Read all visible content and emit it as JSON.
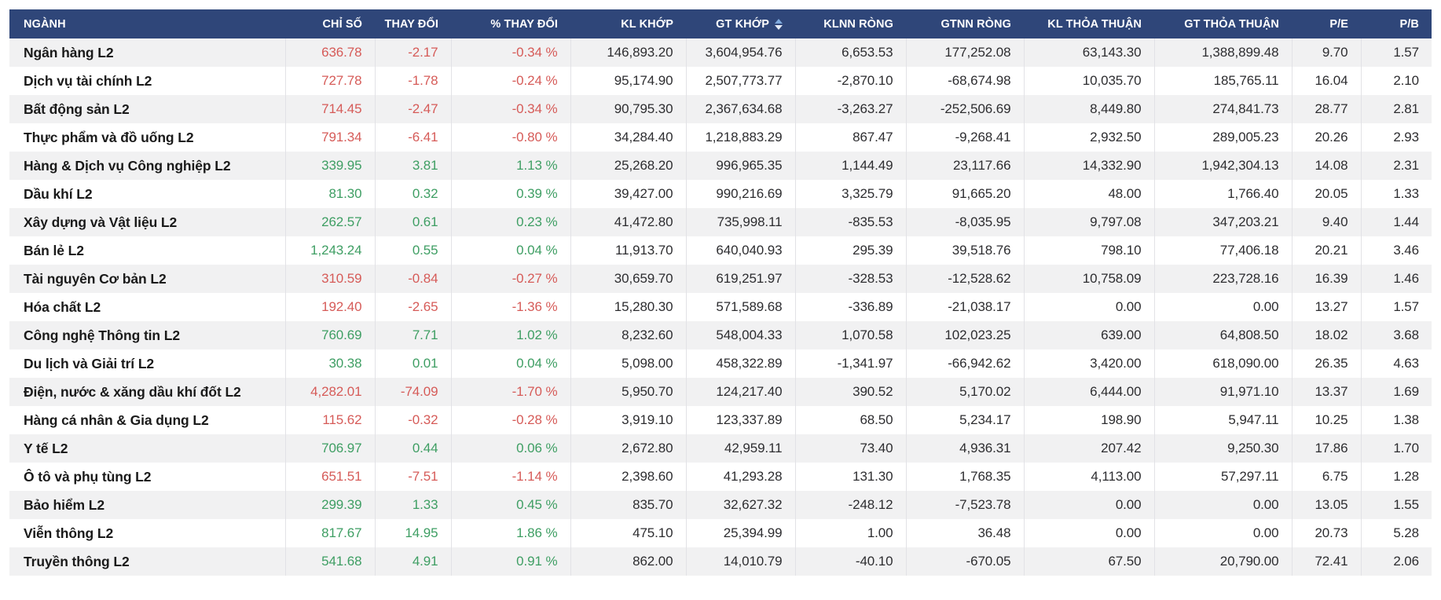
{
  "colors": {
    "header_bg": "#2f4679",
    "header_text": "#ffffff",
    "row_alt": "#f1f1f2",
    "up": "#3e9e63",
    "down": "#d65b58",
    "neutral": "#2d2d30",
    "sort_active": "#7ea9dd"
  },
  "table": {
    "columns": [
      {
        "key": "nganh",
        "label": "NGÀNH",
        "align": "left"
      },
      {
        "key": "chi_so",
        "label": "CHỈ SỐ",
        "align": "right",
        "trend": true
      },
      {
        "key": "thay_doi",
        "label": "THAY ĐỔI",
        "align": "right",
        "trend": true
      },
      {
        "key": "pct",
        "label": "% THAY ĐỔI",
        "align": "right",
        "trend": true
      },
      {
        "key": "kl_khop",
        "label": "KL KHỚP",
        "align": "right"
      },
      {
        "key": "gt_khop",
        "label": "GT KHỚP",
        "align": "right",
        "sorted": true
      },
      {
        "key": "klnn_rong",
        "label": "KLNN RÒNG",
        "align": "right"
      },
      {
        "key": "gtnn_rong",
        "label": "GTNN RÒNG",
        "align": "right"
      },
      {
        "key": "kl_tt",
        "label": "KL THỎA THUẬN",
        "align": "right"
      },
      {
        "key": "gt_tt",
        "label": "GT THỎA THUẬN",
        "align": "right"
      },
      {
        "key": "pe",
        "label": "P/E",
        "align": "right"
      },
      {
        "key": "pb",
        "label": "P/B",
        "align": "right"
      }
    ],
    "rows": [
      {
        "nganh": "Ngân hàng L2",
        "trend": "down",
        "chi_so": "636.78",
        "thay_doi": "-2.17",
        "pct": "-0.34 %",
        "kl_khop": "146,893.20",
        "gt_khop": "3,604,954.76",
        "klnn_rong": "6,653.53",
        "gtnn_rong": "177,252.08",
        "kl_tt": "63,143.30",
        "gt_tt": "1,388,899.48",
        "pe": "9.70",
        "pb": "1.57"
      },
      {
        "nganh": "Dịch vụ tài chính L2",
        "trend": "down",
        "chi_so": "727.78",
        "thay_doi": "-1.78",
        "pct": "-0.24 %",
        "kl_khop": "95,174.90",
        "gt_khop": "2,507,773.77",
        "klnn_rong": "-2,870.10",
        "gtnn_rong": "-68,674.98",
        "kl_tt": "10,035.70",
        "gt_tt": "185,765.11",
        "pe": "16.04",
        "pb": "2.10"
      },
      {
        "nganh": "Bất động sản L2",
        "trend": "down",
        "chi_so": "714.45",
        "thay_doi": "-2.47",
        "pct": "-0.34 %",
        "kl_khop": "90,795.30",
        "gt_khop": "2,367,634.68",
        "klnn_rong": "-3,263.27",
        "gtnn_rong": "-252,506.69",
        "kl_tt": "8,449.80",
        "gt_tt": "274,841.73",
        "pe": "28.77",
        "pb": "2.81"
      },
      {
        "nganh": "Thực phẩm và đồ uống L2",
        "trend": "down",
        "chi_so": "791.34",
        "thay_doi": "-6.41",
        "pct": "-0.80 %",
        "kl_khop": "34,284.40",
        "gt_khop": "1,218,883.29",
        "klnn_rong": "867.47",
        "gtnn_rong": "-9,268.41",
        "kl_tt": "2,932.50",
        "gt_tt": "289,005.23",
        "pe": "20.26",
        "pb": "2.93"
      },
      {
        "nganh": "Hàng & Dịch vụ Công nghiệp L2",
        "trend": "up",
        "chi_so": "339.95",
        "thay_doi": "3.81",
        "pct": "1.13 %",
        "kl_khop": "25,268.20",
        "gt_khop": "996,965.35",
        "klnn_rong": "1,144.49",
        "gtnn_rong": "23,117.66",
        "kl_tt": "14,332.90",
        "gt_tt": "1,942,304.13",
        "pe": "14.08",
        "pb": "2.31"
      },
      {
        "nganh": "Dầu khí L2",
        "trend": "up",
        "chi_so": "81.30",
        "thay_doi": "0.32",
        "pct": "0.39 %",
        "kl_khop": "39,427.00",
        "gt_khop": "990,216.69",
        "klnn_rong": "3,325.79",
        "gtnn_rong": "91,665.20",
        "kl_tt": "48.00",
        "gt_tt": "1,766.40",
        "pe": "20.05",
        "pb": "1.33"
      },
      {
        "nganh": "Xây dựng và Vật liệu L2",
        "trend": "up",
        "chi_so": "262.57",
        "thay_doi": "0.61",
        "pct": "0.23 %",
        "kl_khop": "41,472.80",
        "gt_khop": "735,998.11",
        "klnn_rong": "-835.53",
        "gtnn_rong": "-8,035.95",
        "kl_tt": "9,797.08",
        "gt_tt": "347,203.21",
        "pe": "9.40",
        "pb": "1.44"
      },
      {
        "nganh": "Bán lẻ L2",
        "trend": "up",
        "chi_so": "1,243.24",
        "thay_doi": "0.55",
        "pct": "0.04 %",
        "kl_khop": "11,913.70",
        "gt_khop": "640,040.93",
        "klnn_rong": "295.39",
        "gtnn_rong": "39,518.76",
        "kl_tt": "798.10",
        "gt_tt": "77,406.18",
        "pe": "20.21",
        "pb": "3.46"
      },
      {
        "nganh": "Tài nguyên Cơ bản L2",
        "trend": "down",
        "chi_so": "310.59",
        "thay_doi": "-0.84",
        "pct": "-0.27 %",
        "kl_khop": "30,659.70",
        "gt_khop": "619,251.97",
        "klnn_rong": "-328.53",
        "gtnn_rong": "-12,528.62",
        "kl_tt": "10,758.09",
        "gt_tt": "223,728.16",
        "pe": "16.39",
        "pb": "1.46"
      },
      {
        "nganh": "Hóa chất L2",
        "trend": "down",
        "chi_so": "192.40",
        "thay_doi": "-2.65",
        "pct": "-1.36 %",
        "kl_khop": "15,280.30",
        "gt_khop": "571,589.68",
        "klnn_rong": "-336.89",
        "gtnn_rong": "-21,038.17",
        "kl_tt": "0.00",
        "gt_tt": "0.00",
        "pe": "13.27",
        "pb": "1.57"
      },
      {
        "nganh": "Công nghệ Thông tin L2",
        "trend": "up",
        "chi_so": "760.69",
        "thay_doi": "7.71",
        "pct": "1.02 %",
        "kl_khop": "8,232.60",
        "gt_khop": "548,004.33",
        "klnn_rong": "1,070.58",
        "gtnn_rong": "102,023.25",
        "kl_tt": "639.00",
        "gt_tt": "64,808.50",
        "pe": "18.02",
        "pb": "3.68"
      },
      {
        "nganh": "Du lịch và Giải trí L2",
        "trend": "up",
        "chi_so": "30.38",
        "thay_doi": "0.01",
        "pct": "0.04 %",
        "kl_khop": "5,098.00",
        "gt_khop": "458,322.89",
        "klnn_rong": "-1,341.97",
        "gtnn_rong": "-66,942.62",
        "kl_tt": "3,420.00",
        "gt_tt": "618,090.00",
        "pe": "26.35",
        "pb": "4.63"
      },
      {
        "nganh": "Điện, nước & xăng dầu khí đốt L2",
        "trend": "down",
        "chi_so": "4,282.01",
        "thay_doi": "-74.09",
        "pct": "-1.70 %",
        "kl_khop": "5,950.70",
        "gt_khop": "124,217.40",
        "klnn_rong": "390.52",
        "gtnn_rong": "5,170.02",
        "kl_tt": "6,444.00",
        "gt_tt": "91,971.10",
        "pe": "13.37",
        "pb": "1.69"
      },
      {
        "nganh": "Hàng cá nhân & Gia dụng L2",
        "trend": "down",
        "chi_so": "115.62",
        "thay_doi": "-0.32",
        "pct": "-0.28 %",
        "kl_khop": "3,919.10",
        "gt_khop": "123,337.89",
        "klnn_rong": "68.50",
        "gtnn_rong": "5,234.17",
        "kl_tt": "198.90",
        "gt_tt": "5,947.11",
        "pe": "10.25",
        "pb": "1.38"
      },
      {
        "nganh": "Y tế L2",
        "trend": "up",
        "chi_so": "706.97",
        "thay_doi": "0.44",
        "pct": "0.06 %",
        "kl_khop": "2,672.80",
        "gt_khop": "42,959.11",
        "klnn_rong": "73.40",
        "gtnn_rong": "4,936.31",
        "kl_tt": "207.42",
        "gt_tt": "9,250.30",
        "pe": "17.86",
        "pb": "1.70"
      },
      {
        "nganh": "Ô tô và phụ tùng L2",
        "trend": "down",
        "chi_so": "651.51",
        "thay_doi": "-7.51",
        "pct": "-1.14 %",
        "kl_khop": "2,398.60",
        "gt_khop": "41,293.28",
        "klnn_rong": "131.30",
        "gtnn_rong": "1,768.35",
        "kl_tt": "4,113.00",
        "gt_tt": "57,297.11",
        "pe": "6.75",
        "pb": "1.28"
      },
      {
        "nganh": "Bảo hiểm L2",
        "trend": "up",
        "chi_so": "299.39",
        "thay_doi": "1.33",
        "pct": "0.45 %",
        "kl_khop": "835.70",
        "gt_khop": "32,627.32",
        "klnn_rong": "-248.12",
        "gtnn_rong": "-7,523.78",
        "kl_tt": "0.00",
        "gt_tt": "0.00",
        "pe": "13.05",
        "pb": "1.55"
      },
      {
        "nganh": "Viễn thông L2",
        "trend": "up",
        "chi_so": "817.67",
        "thay_doi": "14.95",
        "pct": "1.86 %",
        "kl_khop": "475.10",
        "gt_khop": "25,394.99",
        "klnn_rong": "1.00",
        "gtnn_rong": "36.48",
        "kl_tt": "0.00",
        "gt_tt": "0.00",
        "pe": "20.73",
        "pb": "5.28"
      },
      {
        "nganh": "Truyền thông L2",
        "trend": "up",
        "chi_so": "541.68",
        "thay_doi": "4.91",
        "pct": "0.91 %",
        "kl_khop": "862.00",
        "gt_khop": "14,010.79",
        "klnn_rong": "-40.10",
        "gtnn_rong": "-670.05",
        "kl_tt": "67.50",
        "gt_tt": "20,790.00",
        "pe": "72.41",
        "pb": "2.06"
      }
    ]
  }
}
